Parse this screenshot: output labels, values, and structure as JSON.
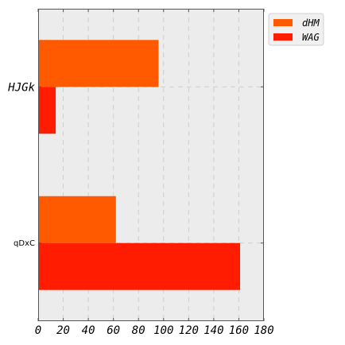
{
  "chart_data": {
    "type": "bar",
    "orientation": "horizontal",
    "categories": [
      "HJGk",
      "qDxC"
    ],
    "series": [
      {
        "name": "dHM",
        "values": [
          96,
          62
        ],
        "color": "#ff5a00"
      },
      {
        "name": "WAG",
        "values": [
          14,
          161
        ],
        "color": "#ff1c00"
      }
    ],
    "xlim": [
      0,
      180
    ],
    "xticks": [
      0,
      20,
      40,
      60,
      80,
      100,
      120,
      140,
      160,
      180
    ],
    "title": "",
    "xlabel": "",
    "ylabel": "",
    "grid": true,
    "legend_position": "top-right",
    "background": "#ececec"
  }
}
